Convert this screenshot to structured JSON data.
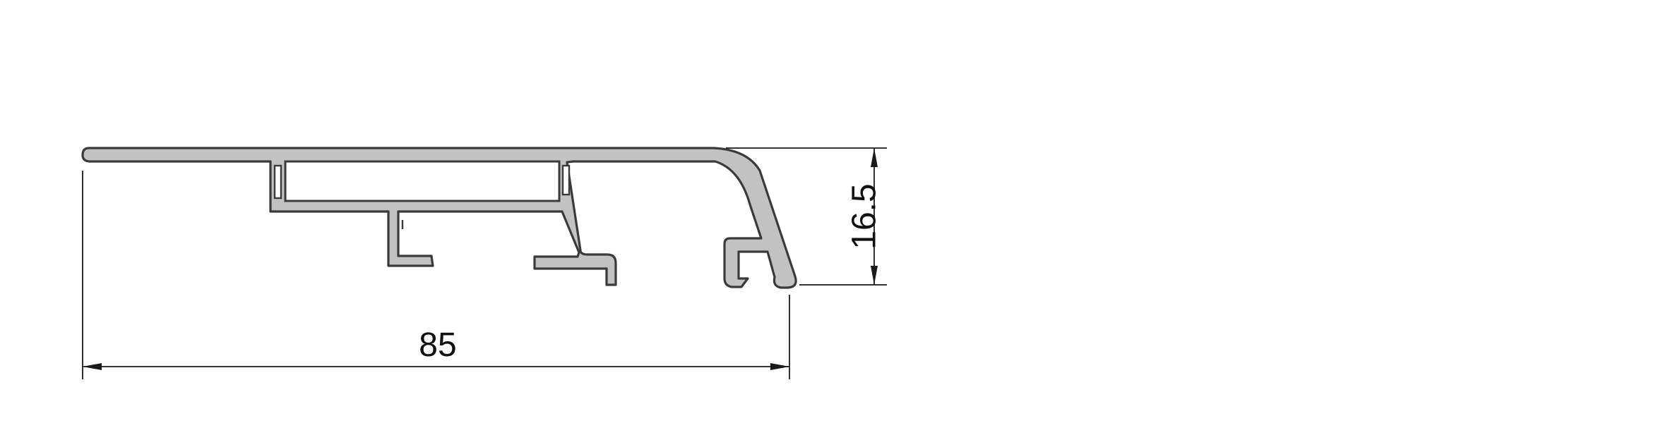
{
  "drawing": {
    "width_dimension": "85",
    "height_dimension": "16.5",
    "profile_fill": "#c2c2c2",
    "outline_color": "#3a3a3a",
    "dimension_color": "#1a1a1a"
  }
}
